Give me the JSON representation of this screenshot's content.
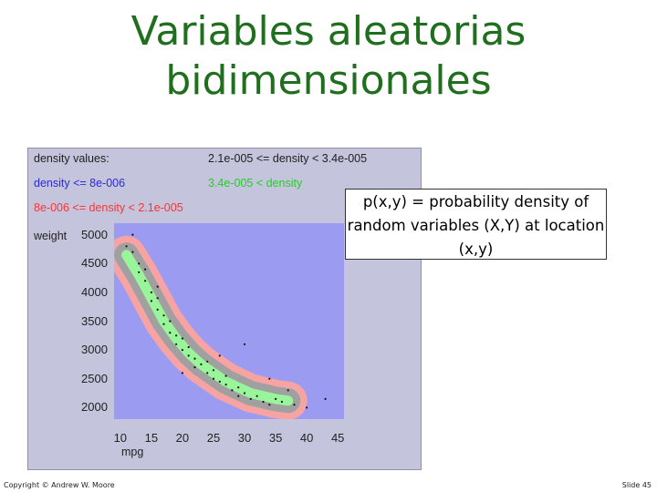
{
  "slide": {
    "title_line1": "Variables aleatorias",
    "title_line2": "bidimensionales",
    "callout": "p(x,y) = probability density of random variables (X,Y) at location (x,y)",
    "copyright": "Copyright © Andrew W. Moore",
    "slide_number": "Slide 45"
  },
  "legend": {
    "heading": "density values:",
    "items": [
      {
        "text": "2.1e-005 <= density < 3.4e-005",
        "color": "#222222"
      },
      {
        "text": "density <= 8e-006",
        "color": "#2b2bd6"
      },
      {
        "text": "3.4e-005 < density",
        "color": "#1fd21f"
      },
      {
        "text": "8e-006 <= density < 2.1e-005",
        "color": "#ff3333"
      }
    ]
  },
  "colors": {
    "title": "#1f6f1f",
    "background_region": "#9b9bf2",
    "band_lowest": "#f7a3a3",
    "band_mid": "#a0a0a0",
    "band_highest": "#99f599",
    "points": "#111111"
  },
  "chart_data": {
    "type": "heatmap",
    "xlabel": "mpg",
    "ylabel": "weight",
    "x_ticks": [
      10,
      15,
      20,
      25,
      30,
      35,
      40,
      45
    ],
    "y_ticks": [
      2000,
      2500,
      3000,
      3500,
      4000,
      4500,
      5000
    ],
    "xlim": [
      9,
      46
    ],
    "ylim": [
      1800,
      5200
    ],
    "density_bands": [
      "density <= 8e-006",
      "8e-006 <= density < 2.1e-005",
      "2.1e-005 <= density < 3.4e-005",
      "3.4e-005 < density"
    ],
    "ridge": {
      "x": [
        11,
        13,
        15,
        17,
        19,
        21,
        23,
        25,
        27,
        29,
        31,
        33,
        35,
        37
      ],
      "y": [
        4650,
        4300,
        3900,
        3500,
        3200,
        2950,
        2750,
        2600,
        2450,
        2350,
        2250,
        2200,
        2150,
        2120
      ]
    },
    "sample_points": [
      [
        12,
        4700
      ],
      [
        13,
        4500
      ],
      [
        13,
        4350
      ],
      [
        14,
        4200
      ],
      [
        14,
        4400
      ],
      [
        15,
        4000
      ],
      [
        15,
        3850
      ],
      [
        16,
        3700
      ],
      [
        16,
        3900
      ],
      [
        17,
        3600
      ],
      [
        17,
        3450
      ],
      [
        18,
        3300
      ],
      [
        18,
        3500
      ],
      [
        19,
        3250
      ],
      [
        19,
        3100
      ],
      [
        20,
        3000
      ],
      [
        20,
        3200
      ],
      [
        21,
        2900
      ],
      [
        21,
        3050
      ],
      [
        22,
        2850
      ],
      [
        22,
        2700
      ],
      [
        23,
        2750
      ],
      [
        24,
        2600
      ],
      [
        24,
        2800
      ],
      [
        25,
        2650
      ],
      [
        25,
        2500
      ],
      [
        26,
        2450
      ],
      [
        27,
        2400
      ],
      [
        27,
        2550
      ],
      [
        28,
        2300
      ],
      [
        29,
        2350
      ],
      [
        29,
        2200
      ],
      [
        30,
        2250
      ],
      [
        31,
        2150
      ],
      [
        32,
        2200
      ],
      [
        33,
        2100
      ],
      [
        34,
        2050
      ],
      [
        35,
        2150
      ],
      [
        36,
        2100
      ],
      [
        38,
        2050
      ],
      [
        40,
        2000
      ],
      [
        43,
        2150
      ],
      [
        30,
        3100
      ],
      [
        34,
        2500
      ],
      [
        12,
        5000
      ],
      [
        11,
        4800
      ],
      [
        20,
        2600
      ],
      [
        26,
        2900
      ],
      [
        37,
        2300
      ],
      [
        16,
        4100
      ]
    ]
  }
}
